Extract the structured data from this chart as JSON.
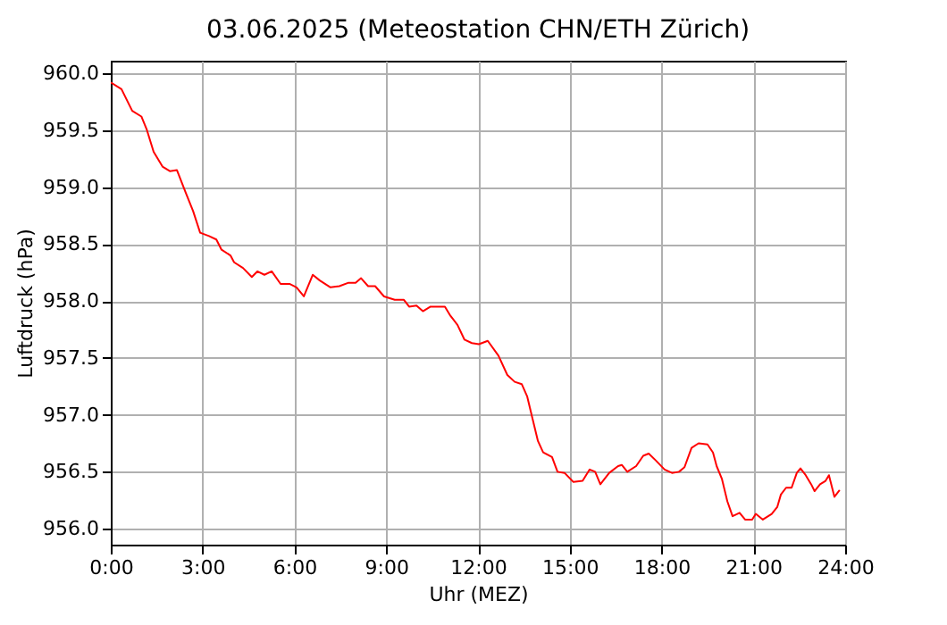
{
  "chart_data": {
    "type": "line",
    "title": "03.06.2025  (Meteostation CHN/ETH Zürich)",
    "xlabel": "Uhr (MEZ)",
    "ylabel": "Luftdruck (hPa)",
    "x": [
      0,
      0.35,
      0.7,
      1.0,
      1.17,
      1.4,
      1.69,
      1.93,
      2.16,
      2.45,
      2.69,
      2.92,
      3.21,
      3.45,
      3.62,
      3.91,
      4.03,
      4.32,
      4.61,
      4.79,
      5.02,
      5.26,
      5.55,
      5.84,
      6.07,
      6.31,
      6.6,
      6.83,
      7.18,
      7.47,
      7.77,
      8.0,
      8.18,
      8.41,
      8.64,
      8.93,
      9.28,
      9.58,
      9.75,
      9.99,
      10.2,
      10.45,
      10.92,
      11.1,
      11.33,
      11.56,
      11.8,
      12.03,
      12.32,
      12.67,
      12.96,
      13.2,
      13.43,
      13.61,
      13.78,
      13.96,
      14.13,
      14.42,
      14.6,
      14.83,
      15.12,
      15.42,
      15.65,
      15.83,
      16.0,
      16.29,
      16.58,
      16.7,
      16.88,
      17.17,
      17.4,
      17.58,
      17.81,
      18.1,
      18.34,
      18.57,
      18.75,
      18.98,
      19.21,
      19.5,
      19.68,
      19.8,
      19.97,
      20.15,
      20.32,
      20.55,
      20.73,
      20.96,
      21.08,
      21.31,
      21.6,
      21.78,
      21.9,
      22.07,
      22.25,
      22.42,
      22.54,
      22.71,
      22.89,
      23.0,
      23.18,
      23.36,
      23.47,
      23.65,
      23.82
    ],
    "series": [
      {
        "color": "#ff0000",
        "values": [
          959.92,
          959.86,
          959.67,
          959.62,
          959.51,
          959.31,
          959.18,
          959.14,
          959.15,
          958.95,
          958.79,
          958.6,
          958.57,
          958.54,
          958.45,
          958.4,
          958.34,
          958.29,
          958.21,
          958.26,
          958.23,
          958.26,
          958.15,
          958.15,
          958.12,
          958.04,
          958.23,
          958.18,
          958.12,
          958.13,
          958.16,
          958.16,
          958.2,
          958.13,
          958.13,
          958.04,
          958.01,
          958.01,
          957.95,
          957.96,
          957.91,
          957.95,
          957.95,
          957.87,
          957.79,
          957.66,
          957.63,
          957.62,
          957.65,
          957.52,
          957.35,
          957.29,
          957.27,
          957.16,
          956.97,
          956.77,
          956.67,
          956.63,
          956.5,
          956.49,
          956.41,
          956.42,
          956.52,
          956.5,
          956.39,
          956.49,
          956.55,
          956.56,
          956.5,
          956.55,
          956.64,
          956.66,
          956.6,
          956.52,
          956.49,
          956.5,
          956.54,
          956.71,
          956.75,
          956.74,
          956.67,
          956.55,
          956.44,
          956.24,
          956.11,
          956.14,
          956.08,
          956.08,
          956.13,
          956.08,
          956.13,
          956.19,
          956.3,
          956.36,
          956.36,
          956.49,
          956.53,
          956.47,
          956.39,
          956.33,
          956.39,
          956.42,
          956.47,
          956.28,
          956.34
        ]
      }
    ],
    "xlim": [
      0,
      24
    ],
    "xticks": [
      {
        "value": 0,
        "label": "0:00"
      },
      {
        "value": 3,
        "label": "3:00"
      },
      {
        "value": 6,
        "label": "6:00"
      },
      {
        "value": 9,
        "label": "9:00"
      },
      {
        "value": 12,
        "label": "12:00"
      },
      {
        "value": 15,
        "label": "15:00"
      },
      {
        "value": 18,
        "label": "18:00"
      },
      {
        "value": 21,
        "label": "21:00"
      },
      {
        "value": 24,
        "label": "24:00"
      }
    ],
    "ylim": [
      955.86,
      960.11
    ],
    "yticks": [
      {
        "value": 956,
        "label": "956.0"
      },
      956.5,
      {
        "value": 957,
        "label": "957.0"
      },
      957.5,
      {
        "value": 958,
        "label": "958.0"
      },
      958.5,
      {
        "value": 959,
        "label": "959.0"
      },
      959.5,
      {
        "value": 960,
        "label": "960.0"
      }
    ],
    "grid": true,
    "line_style": "solid",
    "marker": "none",
    "legend": false
  }
}
